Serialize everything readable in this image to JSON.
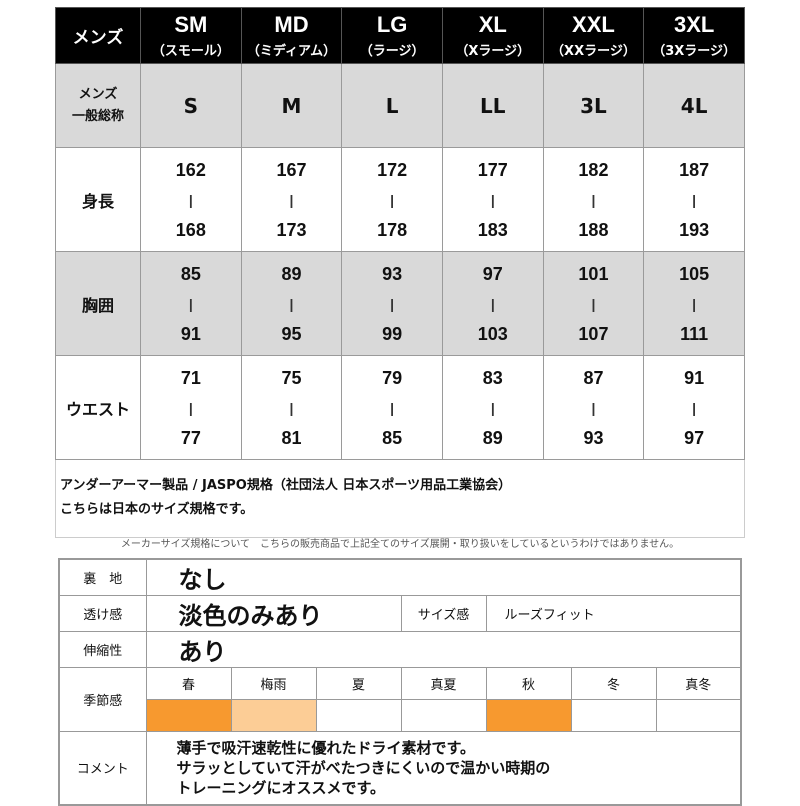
{
  "size_chart": {
    "header_label": "メンズ",
    "sizes": [
      {
        "code": "SM",
        "reading": "（スモール）"
      },
      {
        "code": "MD",
        "reading": "（ミディアム）"
      },
      {
        "code": "LG",
        "reading": "（ラージ）"
      },
      {
        "code": "XL",
        "reading": "（Xラージ）"
      },
      {
        "code": "XXL",
        "reading": "（XXラージ）"
      },
      {
        "code": "3XL",
        "reading": "（3Xラージ）"
      }
    ],
    "general_label_1": "メンズ",
    "general_label_2": "一般総称",
    "general_names": [
      "S",
      "M",
      "L",
      "LL",
      "3L",
      "4L"
    ],
    "separator": "|",
    "rows": [
      {
        "label": "身長",
        "min": [
          "162",
          "167",
          "172",
          "177",
          "182",
          "187"
        ],
        "max": [
          "168",
          "173",
          "178",
          "183",
          "188",
          "193"
        ]
      },
      {
        "label": "胸囲",
        "min": [
          "85",
          "89",
          "93",
          "97",
          "101",
          "105"
        ],
        "max": [
          "91",
          "95",
          "99",
          "103",
          "107",
          "111"
        ]
      },
      {
        "label": "ウエスト",
        "min": [
          "71",
          "75",
          "79",
          "83",
          "87",
          "91"
        ],
        "max": [
          "77",
          "81",
          "85",
          "89",
          "93",
          "97"
        ]
      }
    ]
  },
  "notes": {
    "line1": "アンダーアーマー製品 / JASPO規格（社団法人 日本スポーツ用品工業協会）",
    "line2": "こちらは日本のサイズ規格です。"
  },
  "disclaimer": "メーカーサイズ規格について　こちらの販売商品で上記全てのサイズ展開・取り扱いをしているというわけではありません。",
  "spec": {
    "lining_label": "裏　地",
    "lining": "なし",
    "sheer_label": "透け感",
    "sheer": "淡色のみあり",
    "fit_label": "サイズ感",
    "fit": "ルーズフィット",
    "stretch_label": "伸縮性",
    "stretch": "あり",
    "season_label": "季節感",
    "seasons": [
      {
        "name": "春",
        "level": "full"
      },
      {
        "name": "梅雨",
        "level": "partial"
      },
      {
        "name": "夏",
        "level": "none"
      },
      {
        "name": "真夏",
        "level": "none"
      },
      {
        "name": "秋",
        "level": "full"
      },
      {
        "name": "冬",
        "level": "none"
      },
      {
        "name": "真冬",
        "level": "none"
      }
    ],
    "season_colors": {
      "full": "#f7992f",
      "partial": "#fccd96",
      "none": "#ffffff"
    },
    "comment_label": "コメント",
    "comment": [
      "薄手で吸汗速乾性に優れたドライ素材です。",
      "サラッとしていて汗がべたつきにくいので温かい時期の",
      "トレーニングにオススメです。"
    ]
  }
}
